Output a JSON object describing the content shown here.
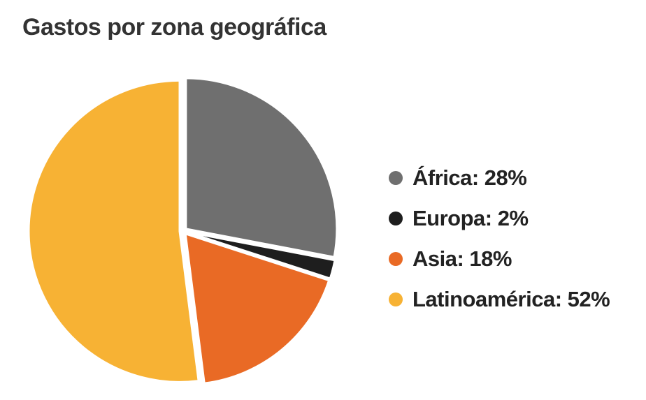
{
  "chart_data": {
    "type": "pie",
    "title": "Gastos por zona geográfica",
    "slices": [
      {
        "label": "África",
        "value": 28,
        "color": "#6f6f6f",
        "legend": "África: 28%"
      },
      {
        "label": "Europa",
        "value": 2,
        "color": "#1e1e1e",
        "legend": "Europa: 2%"
      },
      {
        "label": "Asia",
        "value": 18,
        "color": "#e96a25",
        "legend": "Asia: 18%"
      },
      {
        "label": "Latinoamérica",
        "value": 52,
        "color": "#f7b234",
        "legend": "Latinoamérica: 52%"
      }
    ],
    "legend_position": "right"
  }
}
